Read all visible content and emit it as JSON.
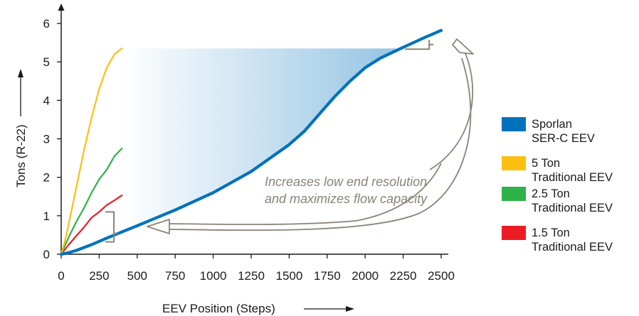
{
  "chart_data": {
    "type": "line",
    "xlabel": "EEV Position (Steps)",
    "ylabel": "Tons (R-22)",
    "xlim": [
      0,
      2500
    ],
    "ylim": [
      0,
      6
    ],
    "xticks": [
      "0",
      "250",
      "500",
      "750",
      "1000",
      "1250",
      "1500",
      "1750",
      "2000",
      "2250",
      "2500"
    ],
    "yticks": [
      "0",
      "1",
      "2",
      "3",
      "4",
      "5",
      "6"
    ],
    "grid": false,
    "legend_position": "right",
    "annotation": [
      "Increases low end resolution",
      "and maximizes flow capacity"
    ],
    "series": [
      {
        "name_lines": [
          "Sporlan",
          "SER-C EEV"
        ],
        "color": "#0072bc",
        "x": [
          0,
          50,
          100,
          200,
          300,
          400,
          500,
          750,
          1000,
          1250,
          1500,
          1600,
          1700,
          1800,
          1900,
          2000,
          2100,
          2250,
          2400,
          2500
        ],
        "y": [
          0,
          0.04,
          0.1,
          0.25,
          0.42,
          0.58,
          0.74,
          1.15,
          1.6,
          2.15,
          2.85,
          3.2,
          3.65,
          4.1,
          4.5,
          4.85,
          5.1,
          5.38,
          5.65,
          5.82
        ]
      },
      {
        "name_lines": [
          "5 Ton",
          "Traditional EEV"
        ],
        "color": "#fdc010",
        "x": [
          0,
          25,
          50,
          100,
          150,
          200,
          250,
          300,
          350,
          400
        ],
        "y": [
          0,
          0.35,
          0.8,
          1.75,
          2.7,
          3.55,
          4.3,
          4.85,
          5.2,
          5.35
        ]
      },
      {
        "name_lines": [
          "2.5 Ton",
          "Traditional EEV"
        ],
        "color": "#2db34a",
        "x": [
          0,
          50,
          100,
          150,
          200,
          250,
          300,
          350,
          400
        ],
        "y": [
          0,
          0.45,
          0.85,
          1.2,
          1.6,
          1.95,
          2.2,
          2.55,
          2.75
        ]
      },
      {
        "name_lines": [
          "1.5 Ton",
          "Traditional EEV"
        ],
        "color": "#ed1c24",
        "x": [
          0,
          50,
          100,
          150,
          200,
          250,
          300,
          350,
          400
        ],
        "y": [
          0,
          0.25,
          0.48,
          0.7,
          0.95,
          1.1,
          1.28,
          1.4,
          1.53
        ]
      }
    ],
    "arrow_color": "#8a8378",
    "shade_color": "#0072bc"
  }
}
